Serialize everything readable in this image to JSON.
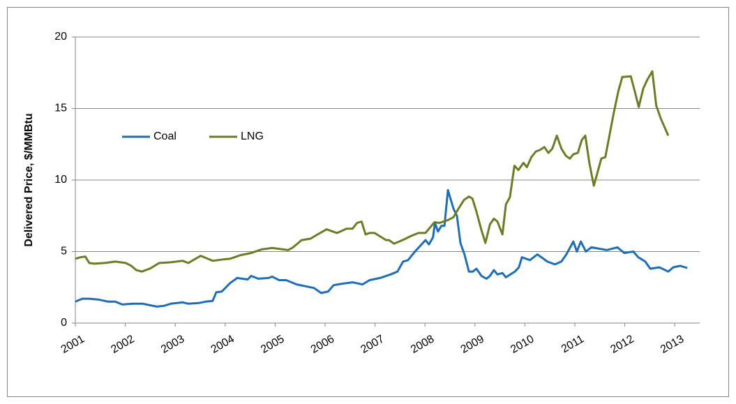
{
  "chart_data": {
    "type": "line",
    "y_label": "Delivered Price, $/MMBtu",
    "xlim": [
      2001,
      2013.5
    ],
    "xticks": [
      2001,
      2002,
      2003,
      2004,
      2005,
      2006,
      2007,
      2008,
      2009,
      2010,
      2011,
      2012,
      2013
    ],
    "ylim": [
      0,
      20
    ],
    "yticks": [
      0,
      5,
      10,
      15,
      20
    ],
    "grid": true,
    "legend": "left",
    "series": [
      {
        "name": "Coal",
        "color": "#1f6db4",
        "x": [
          2001.0,
          2001.14,
          2001.28,
          2001.45,
          2001.66,
          2001.8,
          2001.94,
          2002.15,
          2002.35,
          2002.49,
          2002.63,
          2002.77,
          2002.91,
          2003.15,
          2003.26,
          2003.47,
          2003.61,
          2003.75,
          2003.82,
          2003.93,
          2004.1,
          2004.24,
          2004.45,
          2004.52,
          2004.66,
          2004.87,
          2004.94,
          2005.08,
          2005.22,
          2005.43,
          2005.64,
          2005.78,
          2005.92,
          2006.06,
          2006.17,
          2006.34,
          2006.55,
          2006.75,
          2006.89,
          2007.1,
          2007.31,
          2007.45,
          2007.56,
          2007.66,
          2007.8,
          2008.01,
          2008.08,
          2008.16,
          2008.2,
          2008.26,
          2008.33,
          2008.39,
          2008.46,
          2008.57,
          2008.64,
          2008.71,
          2008.79,
          2008.88,
          2008.96,
          2009.03,
          2009.13,
          2009.23,
          2009.3,
          2009.38,
          2009.45,
          2009.55,
          2009.62,
          2009.8,
          2009.88,
          2009.94,
          2010.1,
          2010.25,
          2010.45,
          2010.6,
          2010.73,
          2010.83,
          2010.97,
          2011.04,
          2011.12,
          2011.22,
          2011.33,
          2011.64,
          2011.85,
          2011.99,
          2012.17,
          2012.27,
          2012.41,
          2012.51,
          2012.69,
          2012.87,
          2012.97,
          2013.11,
          2013.25
        ],
        "values": [
          1.5,
          1.7,
          1.7,
          1.65,
          1.5,
          1.5,
          1.3,
          1.35,
          1.35,
          1.25,
          1.15,
          1.2,
          1.35,
          1.45,
          1.35,
          1.4,
          1.5,
          1.55,
          2.15,
          2.2,
          2.8,
          3.15,
          3.05,
          3.3,
          3.1,
          3.15,
          3.25,
          3.0,
          3.0,
          2.7,
          2.55,
          2.45,
          2.1,
          2.2,
          2.65,
          2.75,
          2.85,
          2.7,
          3.0,
          3.15,
          3.4,
          3.6,
          4.3,
          4.4,
          5.0,
          5.8,
          5.5,
          6.0,
          7.0,
          6.4,
          6.8,
          6.8,
          9.3,
          8.0,
          7.5,
          5.6,
          4.8,
          3.6,
          3.6,
          3.8,
          3.3,
          3.1,
          3.3,
          3.7,
          3.4,
          3.5,
          3.2,
          3.6,
          3.9,
          4.6,
          4.4,
          4.8,
          4.3,
          4.1,
          4.3,
          4.8,
          5.7,
          5.0,
          5.7,
          5.0,
          5.3,
          5.1,
          5.3,
          4.9,
          5.0,
          4.6,
          4.3,
          3.8,
          3.9,
          3.6,
          3.9,
          4.0,
          3.85
        ]
      },
      {
        "name": "LNG",
        "color": "#6b7d24",
        "x": [
          2001.0,
          2001.1,
          2001.2,
          2001.28,
          2001.38,
          2001.59,
          2001.8,
          2002.01,
          2002.12,
          2002.22,
          2002.33,
          2002.49,
          2002.68,
          2002.91,
          2003.15,
          2003.26,
          2003.51,
          2003.65,
          2003.75,
          2003.96,
          2004.1,
          2004.31,
          2004.52,
          2004.73,
          2004.94,
          2005.05,
          2005.26,
          2005.36,
          2005.53,
          2005.71,
          2005.85,
          2006.03,
          2006.24,
          2006.43,
          2006.55,
          2006.64,
          2006.73,
          2006.81,
          2006.89,
          2006.99,
          2007.22,
          2007.28,
          2007.38,
          2007.55,
          2007.73,
          2007.87,
          2008.01,
          2008.19,
          2008.29,
          2008.46,
          2008.57,
          2008.67,
          2008.78,
          2008.88,
          2008.95,
          2009.03,
          2009.13,
          2009.21,
          2009.3,
          2009.38,
          2009.45,
          2009.55,
          2009.62,
          2009.7,
          2009.79,
          2009.87,
          2009.97,
          2010.04,
          2010.13,
          2010.22,
          2010.3,
          2010.39,
          2010.47,
          2010.55,
          2010.64,
          2010.73,
          2010.82,
          2010.9,
          2010.97,
          2011.06,
          2011.14,
          2011.21,
          2011.29,
          2011.38,
          2011.46,
          2011.53,
          2011.61,
          2011.78,
          2011.87,
          2011.95,
          2012.12,
          2012.2,
          2012.28,
          2012.37,
          2012.45,
          2012.55,
          2012.63,
          2012.72,
          2012.87
        ],
        "values": [
          4.5,
          4.6,
          4.65,
          4.2,
          4.15,
          4.2,
          4.3,
          4.2,
          4.0,
          3.7,
          3.6,
          3.8,
          4.2,
          4.25,
          4.35,
          4.2,
          4.7,
          4.5,
          4.35,
          4.45,
          4.5,
          4.75,
          4.9,
          5.15,
          5.25,
          5.2,
          5.1,
          5.3,
          5.8,
          5.9,
          6.2,
          6.55,
          6.3,
          6.6,
          6.6,
          7.0,
          7.1,
          6.2,
          6.3,
          6.3,
          5.8,
          5.8,
          5.55,
          5.8,
          6.1,
          6.3,
          6.3,
          7.05,
          7.0,
          7.2,
          7.4,
          8.0,
          8.6,
          8.85,
          8.7,
          7.8,
          6.5,
          5.6,
          6.9,
          7.3,
          7.1,
          6.2,
          8.3,
          8.8,
          11.0,
          10.7,
          11.2,
          10.9,
          11.6,
          12.0,
          12.1,
          12.3,
          11.9,
          12.2,
          13.1,
          12.2,
          11.7,
          11.5,
          11.8,
          11.9,
          12.8,
          13.1,
          11.2,
          9.6,
          10.6,
          11.5,
          11.6,
          14.7,
          16.2,
          17.2,
          17.25,
          16.2,
          15.1,
          16.4,
          17.0,
          17.6,
          15.2,
          14.3,
          13.1
        ]
      }
    ]
  }
}
